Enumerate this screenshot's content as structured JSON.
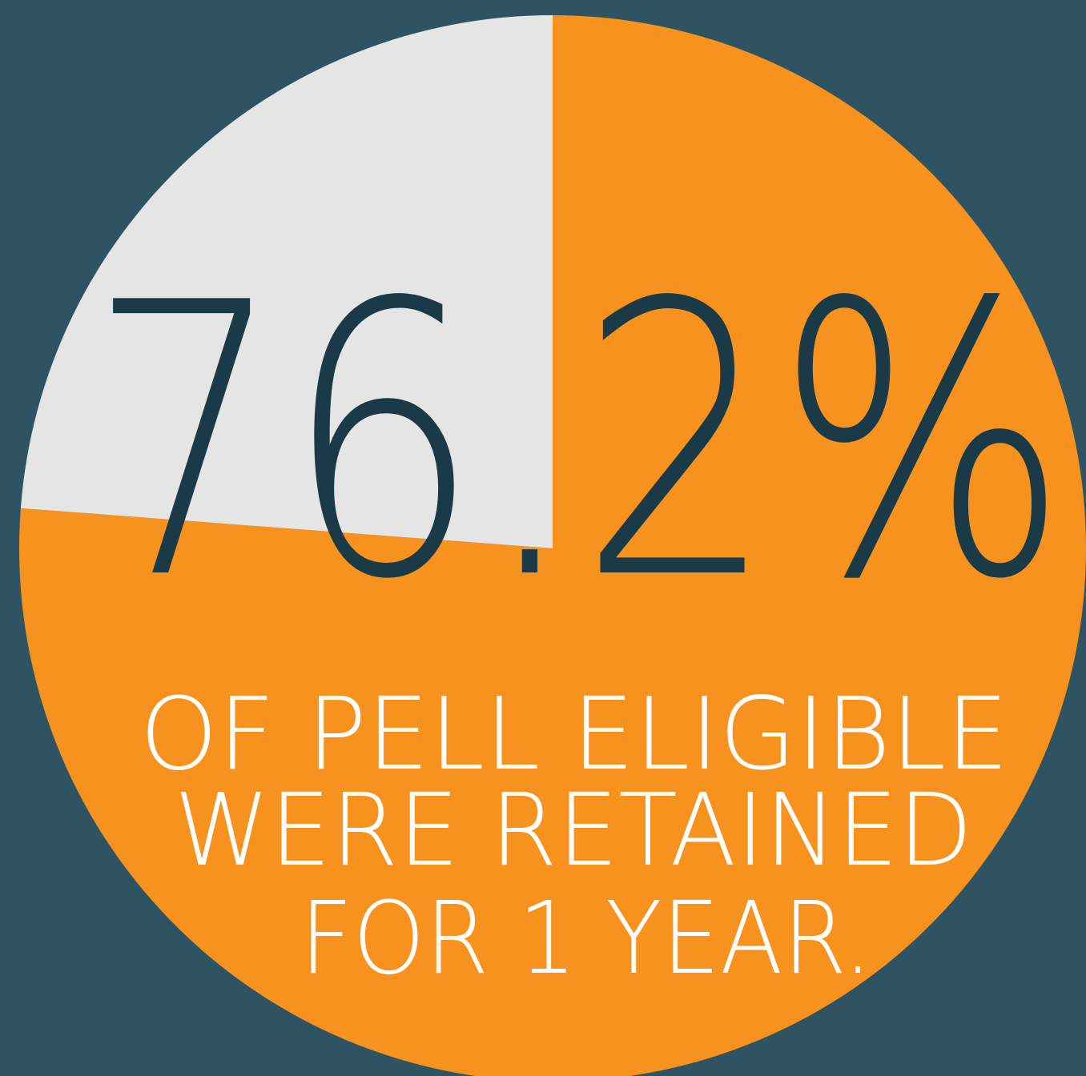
{
  "chart_data": {
    "type": "pie",
    "values": [
      76.2,
      23.8
    ],
    "colors": [
      "#f7921e",
      "#e5e5e5"
    ],
    "value_labels": [
      "76.2%",
      null
    ],
    "annotations": [
      "OF PELL ELIGIBLE",
      "WERE RETAINED",
      "FOR 1 YEAR."
    ]
  }
}
